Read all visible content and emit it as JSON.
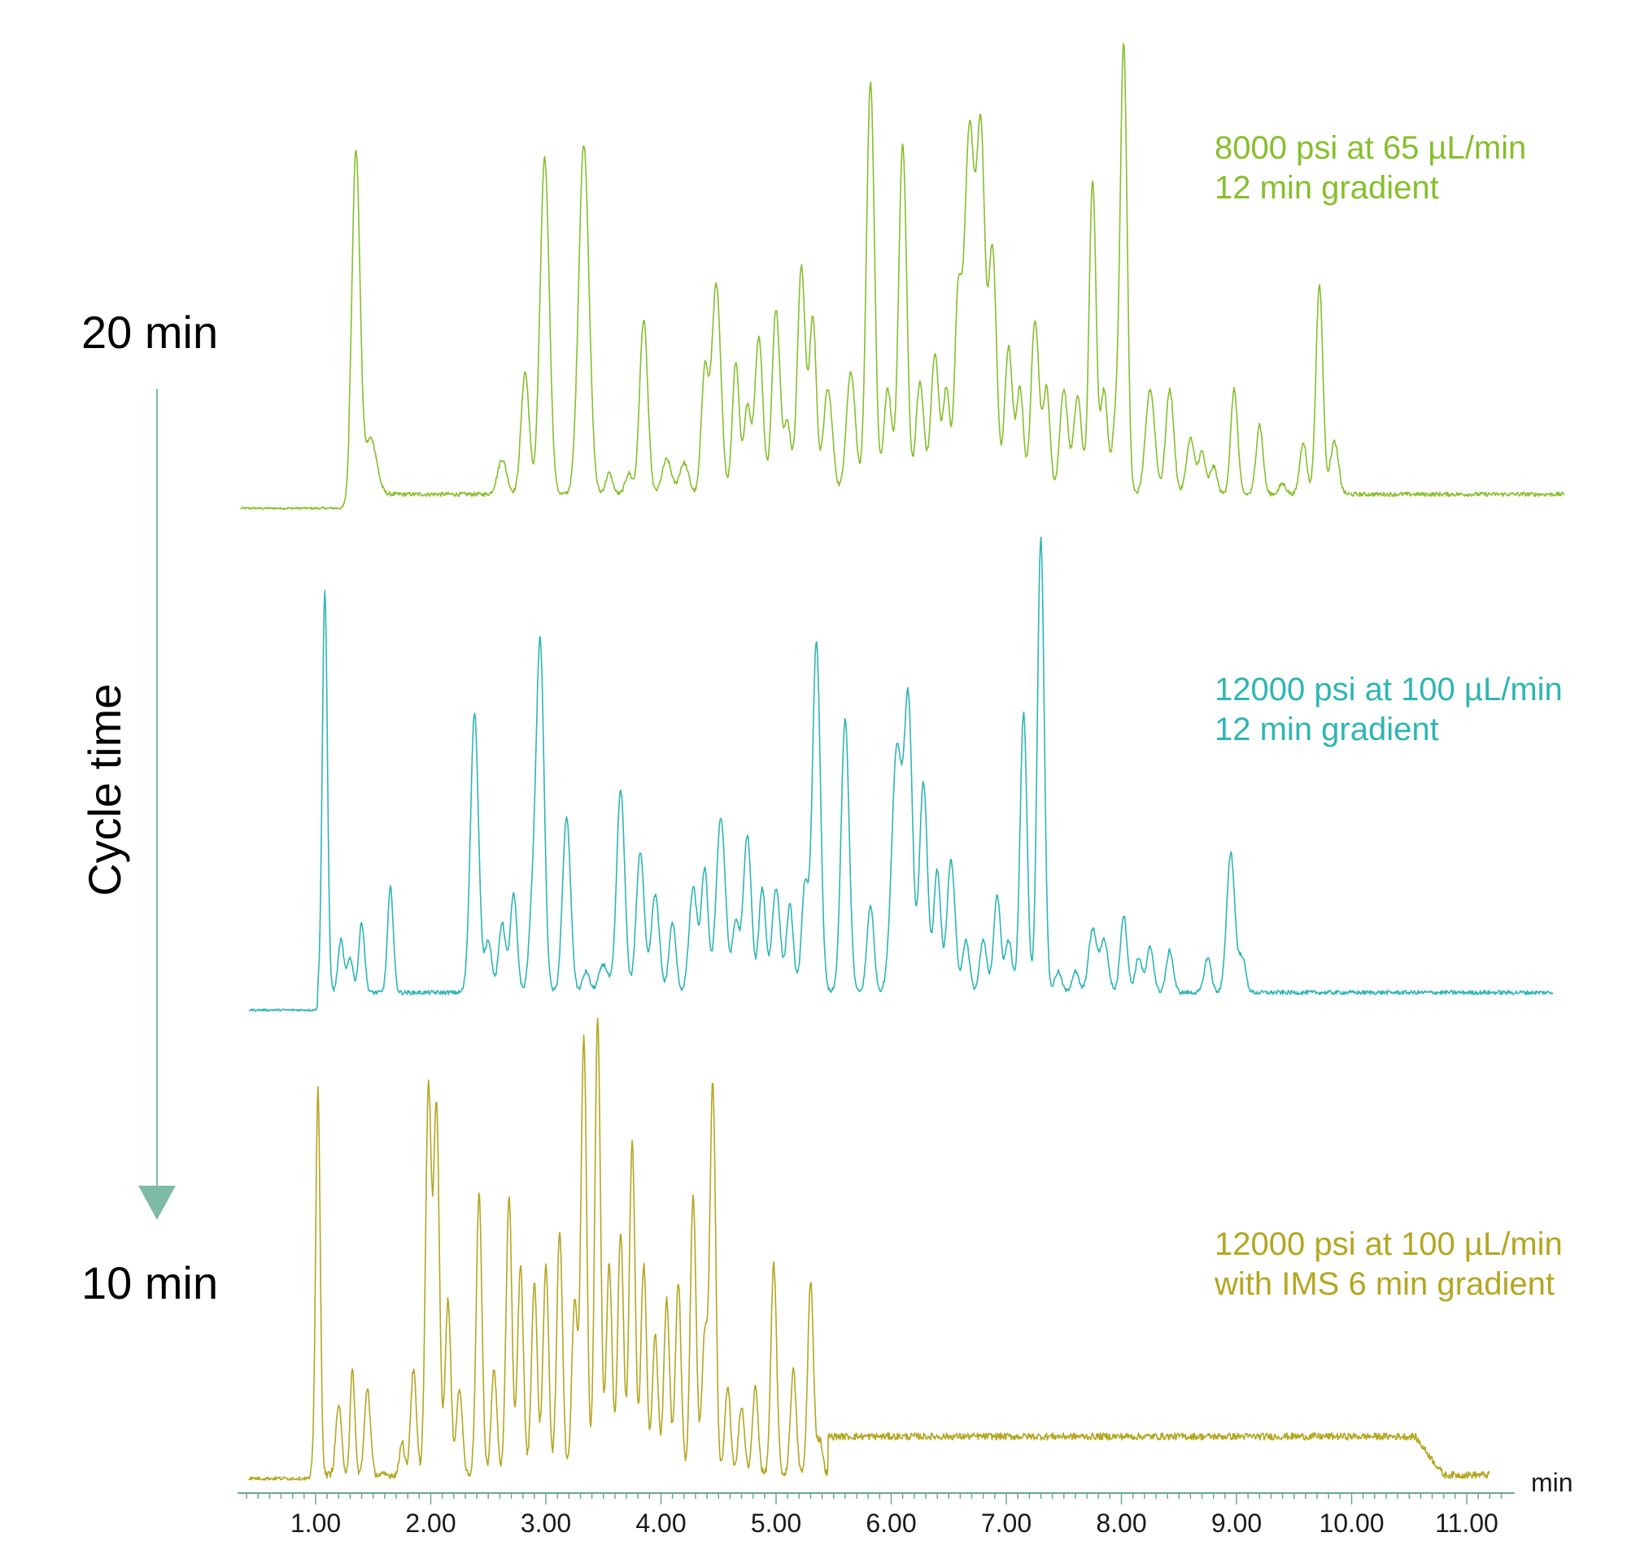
{
  "chart_data": {
    "type": "line",
    "x_unit": "min",
    "xlim": [
      0.3,
      11.4
    ],
    "x_ticks": [
      "1.00",
      "2.00",
      "3.00",
      "4.00",
      "5.00",
      "6.00",
      "7.00",
      "8.00",
      "9.00",
      "10.00",
      "11.00"
    ],
    "cycle_label": "Cycle time",
    "cycle_top": "20 min",
    "cycle_bottom": "10 min",
    "arrow_color": "#7fb9a7",
    "series": [
      {
        "label_line1": "8000 psi at 65 µL/min",
        "label_line2": "12 min gradient",
        "color": "#86bf2c",
        "peaks": [
          [
            1.35,
            0.98,
            0.035
          ],
          [
            1.48,
            0.16,
            0.05
          ],
          [
            2.62,
            0.1,
            0.04
          ],
          [
            2.82,
            0.35,
            0.035
          ],
          [
            2.99,
            0.96,
            0.04
          ],
          [
            3.33,
            1.0,
            0.045
          ],
          [
            3.55,
            0.06,
            0.03
          ],
          [
            3.72,
            0.06,
            0.03
          ],
          [
            3.85,
            0.5,
            0.035
          ],
          [
            4.05,
            0.1,
            0.04
          ],
          [
            4.2,
            0.09,
            0.04
          ],
          [
            4.38,
            0.35,
            0.03
          ],
          [
            4.48,
            0.6,
            0.04
          ],
          [
            4.65,
            0.38,
            0.03
          ],
          [
            4.75,
            0.25,
            0.03
          ],
          [
            4.85,
            0.45,
            0.035
          ],
          [
            5.0,
            0.53,
            0.035
          ],
          [
            5.1,
            0.2,
            0.03
          ],
          [
            5.22,
            0.65,
            0.035
          ],
          [
            5.32,
            0.5,
            0.03
          ],
          [
            5.45,
            0.3,
            0.04
          ],
          [
            5.65,
            0.35,
            0.04
          ],
          [
            5.82,
            1.18,
            0.035
          ],
          [
            5.97,
            0.3,
            0.035
          ],
          [
            6.1,
            1.0,
            0.035
          ],
          [
            6.25,
            0.32,
            0.035
          ],
          [
            6.38,
            0.4,
            0.035
          ],
          [
            6.48,
            0.3,
            0.03
          ],
          [
            6.58,
            0.52,
            0.03
          ],
          [
            6.68,
            1.05,
            0.045
          ],
          [
            6.78,
            0.98,
            0.035
          ],
          [
            6.88,
            0.7,
            0.035
          ],
          [
            7.02,
            0.42,
            0.035
          ],
          [
            7.12,
            0.3,
            0.03
          ],
          [
            7.25,
            0.5,
            0.035
          ],
          [
            7.35,
            0.3,
            0.03
          ],
          [
            7.5,
            0.3,
            0.035
          ],
          [
            7.62,
            0.28,
            0.035
          ],
          [
            7.75,
            0.9,
            0.03
          ],
          [
            7.85,
            0.3,
            0.03
          ],
          [
            7.95,
            0.2,
            0.03
          ],
          [
            8.02,
            1.28,
            0.03
          ],
          [
            8.25,
            0.3,
            0.04
          ],
          [
            8.42,
            0.3,
            0.035
          ],
          [
            8.6,
            0.16,
            0.035
          ],
          [
            8.7,
            0.12,
            0.03
          ],
          [
            8.8,
            0.08,
            0.03
          ],
          [
            8.98,
            0.3,
            0.03
          ],
          [
            9.2,
            0.2,
            0.03
          ],
          [
            9.4,
            0.03,
            0.03
          ],
          [
            9.58,
            0.15,
            0.03
          ],
          [
            9.72,
            0.6,
            0.03
          ],
          [
            9.85,
            0.15,
            0.035
          ]
        ],
        "baseline_start": 0.0,
        "baseline_end": 0.04,
        "noise": 0.006
      },
      {
        "label_line1": "12000 psi at 100 µL/min",
        "label_line2": "12 min gradient",
        "color": "#2eb5b5",
        "peaks": [
          [
            1.08,
            1.15,
            0.022
          ],
          [
            1.22,
            0.15,
            0.025
          ],
          [
            1.3,
            0.1,
            0.025
          ],
          [
            1.4,
            0.2,
            0.025
          ],
          [
            1.65,
            0.3,
            0.025
          ],
          [
            2.38,
            0.8,
            0.035
          ],
          [
            2.5,
            0.15,
            0.03
          ],
          [
            2.62,
            0.2,
            0.03
          ],
          [
            2.72,
            0.28,
            0.03
          ],
          [
            2.88,
            0.2,
            0.03
          ],
          [
            2.95,
            1.0,
            0.035
          ],
          [
            3.18,
            0.5,
            0.035
          ],
          [
            3.35,
            0.06,
            0.03
          ],
          [
            3.5,
            0.08,
            0.04
          ],
          [
            3.65,
            0.58,
            0.035
          ],
          [
            3.82,
            0.4,
            0.035
          ],
          [
            3.95,
            0.28,
            0.035
          ],
          [
            4.1,
            0.2,
            0.03
          ],
          [
            4.28,
            0.3,
            0.035
          ],
          [
            4.38,
            0.35,
            0.03
          ],
          [
            4.52,
            0.5,
            0.04
          ],
          [
            4.65,
            0.2,
            0.03
          ],
          [
            4.75,
            0.45,
            0.035
          ],
          [
            4.88,
            0.3,
            0.03
          ],
          [
            5.0,
            0.3,
            0.035
          ],
          [
            5.12,
            0.25,
            0.03
          ],
          [
            5.25,
            0.3,
            0.03
          ],
          [
            5.35,
            1.0,
            0.035
          ],
          [
            5.6,
            0.78,
            0.035
          ],
          [
            5.82,
            0.25,
            0.03
          ],
          [
            6.05,
            0.7,
            0.045
          ],
          [
            6.15,
            0.8,
            0.035
          ],
          [
            6.28,
            0.6,
            0.035
          ],
          [
            6.4,
            0.35,
            0.03
          ],
          [
            6.52,
            0.38,
            0.035
          ],
          [
            6.65,
            0.15,
            0.03
          ],
          [
            6.8,
            0.15,
            0.03
          ],
          [
            6.92,
            0.28,
            0.03
          ],
          [
            7.02,
            0.15,
            0.03
          ],
          [
            7.15,
            0.8,
            0.03
          ],
          [
            7.3,
            1.3,
            0.03
          ],
          [
            7.45,
            0.06,
            0.03
          ],
          [
            7.6,
            0.06,
            0.03
          ],
          [
            7.75,
            0.18,
            0.035
          ],
          [
            7.85,
            0.15,
            0.035
          ],
          [
            8.02,
            0.22,
            0.03
          ],
          [
            8.15,
            0.1,
            0.03
          ],
          [
            8.25,
            0.13,
            0.03
          ],
          [
            8.42,
            0.12,
            0.03
          ],
          [
            8.75,
            0.1,
            0.03
          ],
          [
            8.95,
            0.4,
            0.035
          ],
          [
            9.05,
            0.1,
            0.03
          ]
        ],
        "baseline_start": 0.0,
        "baseline_end": 0.05,
        "noise": 0.006
      },
      {
        "label_line1": "12000 psi at 100 µL/min",
        "label_line2": "with IMS 6 min gradient",
        "color": "#b5a622",
        "peaks": [
          [
            1.02,
            1.1,
            0.02
          ],
          [
            1.2,
            0.2,
            0.025
          ],
          [
            1.32,
            0.3,
            0.02
          ],
          [
            1.45,
            0.25,
            0.025
          ],
          [
            1.75,
            0.1,
            0.02
          ],
          [
            1.85,
            0.3,
            0.025
          ],
          [
            1.98,
            1.1,
            0.025
          ],
          [
            2.05,
            1.05,
            0.025
          ],
          [
            2.15,
            0.5,
            0.025
          ],
          [
            2.25,
            0.25,
            0.025
          ],
          [
            2.42,
            0.8,
            0.025
          ],
          [
            2.55,
            0.3,
            0.025
          ],
          [
            2.68,
            0.8,
            0.025
          ],
          [
            2.78,
            0.6,
            0.025
          ],
          [
            2.9,
            0.55,
            0.025
          ],
          [
            3.0,
            0.6,
            0.025
          ],
          [
            3.12,
            0.7,
            0.025
          ],
          [
            3.25,
            0.5,
            0.025
          ],
          [
            3.33,
            1.25,
            0.025
          ],
          [
            3.45,
            1.3,
            0.025
          ],
          [
            3.55,
            0.6,
            0.025
          ],
          [
            3.65,
            0.7,
            0.025
          ],
          [
            3.75,
            0.95,
            0.025
          ],
          [
            3.85,
            0.6,
            0.025
          ],
          [
            3.95,
            0.4,
            0.025
          ],
          [
            4.05,
            0.5,
            0.025
          ],
          [
            4.15,
            0.55,
            0.025
          ],
          [
            4.28,
            0.8,
            0.025
          ],
          [
            4.38,
            0.4,
            0.025
          ],
          [
            4.45,
            1.12,
            0.025
          ],
          [
            4.58,
            0.25,
            0.025
          ],
          [
            4.7,
            0.2,
            0.025
          ],
          [
            4.82,
            0.25,
            0.025
          ],
          [
            4.98,
            0.6,
            0.025
          ],
          [
            5.15,
            0.3,
            0.025
          ],
          [
            5.3,
            0.55,
            0.025
          ],
          [
            5.38,
            0.1,
            0.025
          ]
        ],
        "baseline_start": 0.0,
        "plateau_start": 5.45,
        "plateau_end": 10.55,
        "plateau_level": 0.11,
        "baseline_end": 0.01,
        "noise": 0.01
      }
    ]
  }
}
